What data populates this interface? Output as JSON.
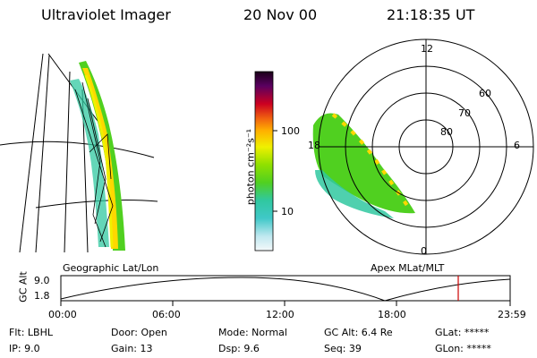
{
  "header": {
    "title": "Ultraviolet Imager",
    "date": "20 Nov 00",
    "time": "21:18:35 UT"
  },
  "colorbar": {
    "unit_label": "photon cm⁻²s⁻¹",
    "ticks": [
      "100",
      "10"
    ],
    "colors": [
      "#1a0018",
      "#3a0050",
      "#5a0060",
      "#7a0040",
      "#a00028",
      "#cc0020",
      "#e83010",
      "#f06010",
      "#f89010",
      "#ffb000",
      "#ffd800",
      "#f0f000",
      "#c8f000",
      "#90e000",
      "#50d020",
      "#30c860",
      "#30c8a0",
      "#40c8c8",
      "#80d8e0",
      "#c0e8f0",
      "#e8f4f8"
    ]
  },
  "labels": {
    "geo": "Geographic Lat/Lon",
    "apex": "Apex MLat/MLT"
  },
  "polar": {
    "mlt_labels": [
      "12",
      "18",
      "6",
      "0"
    ],
    "lat_labels": [
      "60",
      "70",
      "80"
    ]
  },
  "timeline": {
    "ylabel": "GC Alt",
    "yticks": [
      "9.0",
      "1.8"
    ],
    "xticks": [
      "00:00",
      "06:00",
      "12:00",
      "18:00",
      "23:59"
    ],
    "marker_color": "#cc0000"
  },
  "info": {
    "filter": "Flt: LBHL",
    "ip": "IP:  9.0",
    "door": "Door: Open",
    "gain": "Gain: 13",
    "mode": "Mode: Normal",
    "dsp": "Dsp:      9.6",
    "gcalt": "GC Alt: 6.4 Re",
    "seq": "Seq: 39",
    "glat": "GLat: *****",
    "glon": "GLon: *****"
  }
}
